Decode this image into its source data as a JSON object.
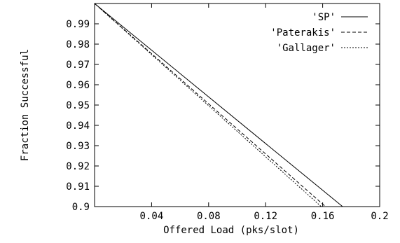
{
  "chart_data": {
    "type": "line",
    "title": "",
    "xlabel": "Offered Load (pks/slot)",
    "ylabel": "Fraction Successful",
    "xlim": [
      0,
      0.2
    ],
    "ylim": [
      0.9,
      1.0
    ],
    "x_ticks": [
      0.04,
      0.08,
      0.12,
      0.16,
      0.2
    ],
    "x_tick_labels": [
      "0.04",
      "0.08",
      "0.12",
      "0.16",
      "0.2"
    ],
    "y_ticks": [
      0.9,
      0.91,
      0.92,
      0.93,
      0.94,
      0.95,
      0.96,
      0.97,
      0.98,
      0.99
    ],
    "y_tick_labels": [
      "0.9",
      "0.91",
      "0.92",
      "0.93",
      "0.94",
      "0.95",
      "0.96",
      "0.97",
      "0.98",
      "0.99"
    ],
    "grid": false,
    "legend_position": "top-right",
    "series": [
      {
        "name": "'SP'",
        "line_style": "solid",
        "x": [
          0,
          0.174
        ],
        "y": [
          1.0,
          0.9
        ]
      },
      {
        "name": "'Paterakis'",
        "line_style": "dashed",
        "x": [
          0,
          0.162
        ],
        "y": [
          1.0,
          0.9
        ]
      },
      {
        "name": "'Gallager'",
        "line_style": "dotted",
        "x": [
          0,
          0.159
        ],
        "y": [
          1.0,
          0.9
        ]
      }
    ]
  }
}
